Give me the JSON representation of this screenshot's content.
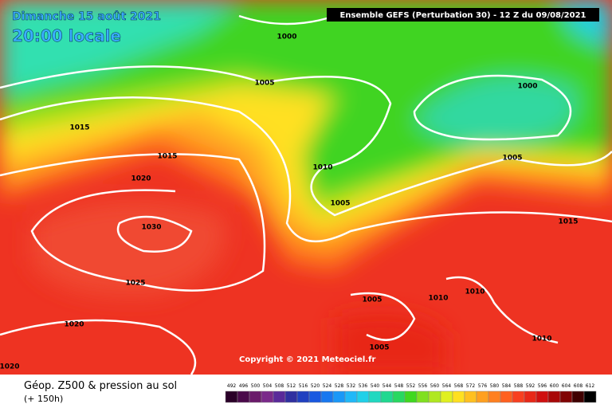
{
  "header": {
    "date": "Dimanche 15 août 2021",
    "time": "20:00 locale",
    "model": "Ensemble GEFS  (Perturbation 30)  -  12 Z du 09/08/2021"
  },
  "isobars": [
    {
      "label": "1000"
    },
    {
      "label": "1005"
    },
    {
      "label": "1015"
    },
    {
      "label": "1015"
    },
    {
      "label": "1020"
    },
    {
      "label": "1030"
    },
    {
      "label": "1025"
    },
    {
      "label": "1020"
    },
    {
      "label": "1020"
    },
    {
      "label": "1010"
    },
    {
      "label": "1005"
    },
    {
      "label": "1000"
    },
    {
      "label": "1005"
    },
    {
      "label": "1015"
    },
    {
      "label": "1005"
    },
    {
      "label": "1010"
    },
    {
      "label": "1010"
    },
    {
      "label": "1005"
    },
    {
      "label": "1010"
    }
  ],
  "footer": {
    "copyright": "Copyright © 2021 Meteociel.fr",
    "product": "Géop. Z500 & pression au sol",
    "lead": "(+ 150h)"
  },
  "legend": {
    "values": [
      492,
      496,
      500,
      504,
      508,
      512,
      516,
      520,
      524,
      528,
      532,
      536,
      540,
      544,
      548,
      552,
      556,
      560,
      564,
      568,
      572,
      576,
      580,
      584,
      588,
      592,
      596,
      600,
      604,
      608,
      612
    ]
  }
}
